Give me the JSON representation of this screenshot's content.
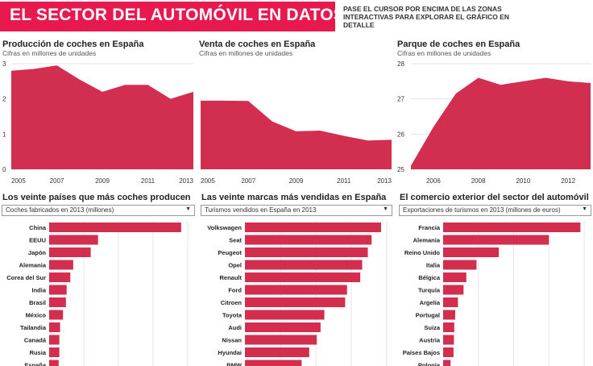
{
  "header": {
    "title": "EL SECTOR DEL AUTOMÓVIL EN DATOS",
    "hint": "PASE EL CURSOR POR ENCIMA DE LAS ZONAS INTERACTIVAS PARA EXPLORAR EL GRÁFICO EN DETALLE"
  },
  "colors": {
    "accent": "#e8194f",
    "bars": "#d42e4e",
    "area": "#d22e4f"
  },
  "chart_data": [
    {
      "type": "area",
      "title": "Producción de coches en España",
      "subtitle": "Cifras en millones de unidades",
      "x": [
        2005,
        2006,
        2007,
        2008,
        2009,
        2010,
        2011,
        2012,
        2013
      ],
      "values": [
        2.8,
        2.85,
        2.95,
        2.55,
        2.2,
        2.4,
        2.4,
        2.0,
        2.2
      ],
      "xticks": [
        "2005",
        "2007",
        "2009",
        "2011",
        "2013"
      ],
      "yticks": [
        "0",
        "1",
        "2",
        "3"
      ],
      "ylim": [
        0,
        3
      ]
    },
    {
      "type": "area",
      "title": "Venta de coches en España",
      "subtitle": "Cifras en millones de unidades",
      "x": [
        2005,
        2006,
        2007,
        2008,
        2009,
        2010,
        2011,
        2012,
        2013
      ],
      "values": [
        1.95,
        1.95,
        1.94,
        1.36,
        1.08,
        1.1,
        0.95,
        0.82,
        0.84
      ],
      "xticks": [
        "2005",
        "2007",
        "2009",
        "2011",
        "2013"
      ],
      "yticks": [],
      "ylim": [
        0,
        3
      ]
    },
    {
      "type": "area",
      "title": "Parque de coches en España",
      "subtitle": "Cifras en millones de unidades",
      "x": [
        2005,
        2006,
        2007,
        2008,
        2009,
        2010,
        2011,
        2012,
        2013
      ],
      "values": [
        25.1,
        26.2,
        27.15,
        27.6,
        27.4,
        27.5,
        27.6,
        27.5,
        27.45
      ],
      "xticks": [
        "2006",
        "2008",
        "2010",
        "2012"
      ],
      "yticks": [
        "25",
        "26",
        "27",
        "28"
      ],
      "ylim": [
        25,
        28
      ]
    },
    {
      "type": "bar",
      "title": "Los veinte países que más coches producen",
      "selected": "Coches fabricados en 2013 (millones)",
      "categories": [
        "China",
        "EEUU",
        "Japón",
        "Alemania",
        "Corea del Sur",
        "India",
        "Brasil",
        "México",
        "Tailandia",
        "Canadá",
        "Rusia",
        "España"
      ],
      "values": [
        18.1,
        6.7,
        5.7,
        3.3,
        2.9,
        2.4,
        2.3,
        1.9,
        1.5,
        1.4,
        1.4,
        1.3
      ],
      "xlim": [
        0,
        19
      ]
    },
    {
      "type": "bar",
      "title": "Las veinte marcas más vendidas en España",
      "selected": "Turismos vendidos en España en 2013",
      "categories": [
        "Volkswagen",
        "Seat",
        "Peugeot",
        "Opel",
        "Renault",
        "Ford",
        "Citroen",
        "Toyota",
        "Audi",
        "Nissan",
        "Hyundai",
        "BMW"
      ],
      "values": [
        72,
        67,
        65,
        62,
        61,
        54,
        53,
        42,
        40,
        38,
        34,
        30
      ],
      "xlim": [
        0,
        75
      ]
    },
    {
      "type": "bar",
      "title": "El comercio exterior del sector del automóvil",
      "selected": "Exportaciones de turismos en 2013 (millones de euros)",
      "categories": [
        "Francia",
        "Alemania",
        "Reino Unido",
        "Italia",
        "Bélgica",
        "Turquía",
        "Argelia",
        "Portugal",
        "Suiza",
        "Austria",
        "Países Bajos",
        "Polonia"
      ],
      "values": [
        7400,
        5700,
        3000,
        1800,
        1250,
        1100,
        800,
        650,
        600,
        580,
        560,
        400
      ],
      "xlim": [
        0,
        7600
      ]
    }
  ]
}
